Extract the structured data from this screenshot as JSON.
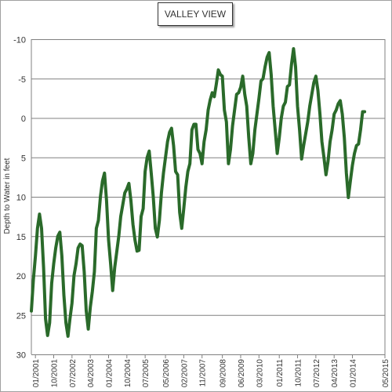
{
  "chart_data": {
    "type": "line",
    "title": "VALLEY VIEW",
    "ylabel": "Depth to Water in feet",
    "xlabel": "",
    "ylim": [
      -10,
      30
    ],
    "y_inverted": true,
    "grid": true,
    "legend": "none",
    "yticks": [
      -10,
      -5,
      0,
      5,
      10,
      15,
      20,
      25,
      30
    ],
    "xticks": [
      {
        "label": "01/2001",
        "date": "2001-01"
      },
      {
        "label": "10/2001",
        "date": "2001-10"
      },
      {
        "label": "07/2002",
        "date": "2002-07"
      },
      {
        "label": "04/2003",
        "date": "2003-04"
      },
      {
        "label": "01/2004",
        "date": "2004-01"
      },
      {
        "label": "10/2004",
        "date": "2004-10"
      },
      {
        "label": "07/2005",
        "date": "2005-07"
      },
      {
        "label": "05/2006",
        "date": "2006-05"
      },
      {
        "label": "02/2007",
        "date": "2007-02"
      },
      {
        "label": "11/2007",
        "date": "2007-11"
      },
      {
        "label": "09/2008",
        "date": "2008-09"
      },
      {
        "label": "06/2009",
        "date": "2009-06"
      },
      {
        "label": "03/2010",
        "date": "2010-03"
      },
      {
        "label": "01/2011",
        "date": "2011-01"
      },
      {
        "label": "10/2011",
        "date": "2011-10"
      },
      {
        "label": "07/2012",
        "date": "2012-07"
      },
      {
        "label": "04/2013",
        "date": "2013-04"
      },
      {
        "label": "01/2014",
        "date": "2014-01"
      },
      {
        "label": "05/2015",
        "date": "2015-05"
      }
    ],
    "series": [
      {
        "color": "#2a6a2a",
        "points": [
          [
            "2000-11",
            24.5
          ],
          [
            "2000-12",
            20.5
          ],
          [
            "2001-01",
            17.5
          ],
          [
            "2001-02",
            14.0
          ],
          [
            "2001-03",
            12.2
          ],
          [
            "2001-04",
            14.0
          ],
          [
            "2001-05",
            19.0
          ],
          [
            "2001-06",
            25.5
          ],
          [
            "2001-07",
            27.6
          ],
          [
            "2001-08",
            26.0
          ],
          [
            "2001-09",
            21.0
          ],
          [
            "2001-10",
            18.5
          ],
          [
            "2001-11",
            16.5
          ],
          [
            "2001-12",
            15.0
          ],
          [
            "2002-01",
            14.5
          ],
          [
            "2002-02",
            17.5
          ],
          [
            "2002-03",
            22.5
          ],
          [
            "2002-04",
            26.0
          ],
          [
            "2002-05",
            27.7
          ],
          [
            "2002-06",
            25.5
          ],
          [
            "2002-07",
            23.5
          ],
          [
            "2002-08",
            20.0
          ],
          [
            "2002-09",
            18.5
          ],
          [
            "2002-10",
            16.5
          ],
          [
            "2002-11",
            16.0
          ],
          [
            "2002-12",
            16.2
          ],
          [
            "2003-01",
            19.5
          ],
          [
            "2003-02",
            24.5
          ],
          [
            "2003-03",
            26.8
          ],
          [
            "2003-04",
            24.0
          ],
          [
            "2003-05",
            22.0
          ],
          [
            "2003-06",
            19.5
          ],
          [
            "2003-07",
            14.0
          ],
          [
            "2003-08",
            13.0
          ],
          [
            "2003-09",
            10.0
          ],
          [
            "2003-10",
            8.0
          ],
          [
            "2003-11",
            7.0
          ],
          [
            "2003-12",
            10.5
          ],
          [
            "2004-01",
            15.5
          ],
          [
            "2004-02",
            18.5
          ],
          [
            "2004-03",
            21.9
          ],
          [
            "2004-04",
            19.0
          ],
          [
            "2004-05",
            17.0
          ],
          [
            "2004-06",
            15.0
          ],
          [
            "2004-07",
            12.5
          ],
          [
            "2004-08",
            11.0
          ],
          [
            "2004-09",
            9.5
          ],
          [
            "2004-10",
            9.0
          ],
          [
            "2004-11",
            8.3
          ],
          [
            "2004-12",
            10.5
          ],
          [
            "2005-01",
            13.5
          ],
          [
            "2005-02",
            15.5
          ],
          [
            "2005-03",
            16.9
          ],
          [
            "2005-04",
            16.8
          ],
          [
            "2005-05",
            12.5
          ],
          [
            "2005-06",
            11.5
          ],
          [
            "2005-07",
            6.8
          ],
          [
            "2005-08",
            5.0
          ],
          [
            "2005-09",
            4.2
          ],
          [
            "2005-10",
            7.0
          ],
          [
            "2005-11",
            10.0
          ],
          [
            "2005-12",
            14.0
          ],
          [
            "2006-01",
            15.1
          ],
          [
            "2006-02",
            13.0
          ],
          [
            "2006-03",
            9.5
          ],
          [
            "2006-04",
            7.0
          ],
          [
            "2006-05",
            5.0
          ],
          [
            "2006-06",
            3.0
          ],
          [
            "2006-07",
            1.8
          ],
          [
            "2006-08",
            1.3
          ],
          [
            "2006-09",
            3.5
          ],
          [
            "2006-10",
            6.8
          ],
          [
            "2006-11",
            7.2
          ],
          [
            "2006-12",
            12.0
          ],
          [
            "2007-01",
            14.0
          ],
          [
            "2007-02",
            11.5
          ],
          [
            "2007-03",
            8.8
          ],
          [
            "2007-04",
            6.8
          ],
          [
            "2007-05",
            5.8
          ],
          [
            "2007-06",
            1.5
          ],
          [
            "2007-07",
            0.8
          ],
          [
            "2007-08",
            0.8
          ],
          [
            "2007-09",
            4.0
          ],
          [
            "2007-10",
            4.5
          ],
          [
            "2007-11",
            5.8
          ],
          [
            "2007-12",
            3.0
          ],
          [
            "2008-01",
            1.5
          ],
          [
            "2008-02",
            -1.0
          ],
          [
            "2008-03",
            -2.3
          ],
          [
            "2008-04",
            -3.2
          ],
          [
            "2008-05",
            -2.7
          ],
          [
            "2008-06",
            -4.3
          ],
          [
            "2008-07",
            -6.1
          ],
          [
            "2008-08",
            -5.5
          ],
          [
            "2008-09",
            -5.3
          ],
          [
            "2008-10",
            -1.0
          ],
          [
            "2008-11",
            0.5
          ],
          [
            "2008-12",
            5.8
          ],
          [
            "2009-01",
            4.0
          ],
          [
            "2009-02",
            1.0
          ],
          [
            "2009-03",
            -1.0
          ],
          [
            "2009-04",
            -3.0
          ],
          [
            "2009-05",
            -3.2
          ],
          [
            "2009-06",
            -3.9
          ],
          [
            "2009-07",
            -5.3
          ],
          [
            "2009-08",
            -3.0
          ],
          [
            "2009-09",
            -1.5
          ],
          [
            "2009-10",
            2.5
          ],
          [
            "2009-11",
            5.8
          ],
          [
            "2009-12",
            4.5
          ],
          [
            "2010-01",
            1.5
          ],
          [
            "2010-02",
            -0.5
          ],
          [
            "2010-03",
            -2.5
          ],
          [
            "2010-04",
            -4.7
          ],
          [
            "2010-05",
            -5.0
          ],
          [
            "2010-06",
            -6.5
          ],
          [
            "2010-07",
            -7.7
          ],
          [
            "2010-08",
            -8.3
          ],
          [
            "2010-09",
            -5.5
          ],
          [
            "2010-10",
            -1.5
          ],
          [
            "2010-11",
            1.5
          ],
          [
            "2010-12",
            4.5
          ],
          [
            "2011-01",
            2.5
          ],
          [
            "2011-02",
            0.0
          ],
          [
            "2011-03",
            -1.5
          ],
          [
            "2011-04",
            -2.0
          ],
          [
            "2011-05",
            -4.0
          ],
          [
            "2011-06",
            -4.2
          ],
          [
            "2011-07",
            -6.8
          ],
          [
            "2011-08",
            -8.8
          ],
          [
            "2011-09",
            -6.5
          ],
          [
            "2011-10",
            -1.5
          ],
          [
            "2011-11",
            1.5
          ],
          [
            "2011-12",
            5.2
          ],
          [
            "2012-01",
            3.5
          ],
          [
            "2012-02",
            2.0
          ],
          [
            "2012-03",
            0.5
          ],
          [
            "2012-04",
            -1.5
          ],
          [
            "2012-05",
            -3.0
          ],
          [
            "2012-06",
            -4.5
          ],
          [
            "2012-07",
            -5.3
          ],
          [
            "2012-08",
            -3.5
          ],
          [
            "2012-09",
            -0.5
          ],
          [
            "2012-10",
            3.0
          ],
          [
            "2012-11",
            5.0
          ],
          [
            "2012-12",
            7.2
          ],
          [
            "2013-01",
            5.5
          ],
          [
            "2013-02",
            3.0
          ],
          [
            "2013-03",
            1.5
          ],
          [
            "2013-04",
            -0.5
          ],
          [
            "2013-05",
            -1.0
          ],
          [
            "2013-06",
            -1.8
          ],
          [
            "2013-07",
            -2.2
          ],
          [
            "2013-08",
            -0.5
          ],
          [
            "2013-09",
            2.5
          ],
          [
            "2013-10",
            7.0
          ],
          [
            "2013-11",
            10.1
          ],
          [
            "2013-12",
            8.0
          ],
          [
            "2014-01",
            6.0
          ],
          [
            "2014-02",
            4.5
          ],
          [
            "2014-03",
            3.5
          ],
          [
            "2014-04",
            3.3
          ],
          [
            "2014-05",
            1.5
          ],
          [
            "2014-06",
            -0.8
          ],
          [
            "2014-07",
            -0.8
          ]
        ]
      }
    ]
  }
}
